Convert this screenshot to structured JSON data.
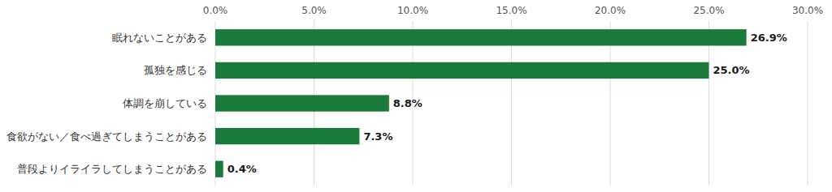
{
  "chart_data": {
    "type": "bar",
    "orientation": "horizontal",
    "categories": [
      "普段よりイライラしてしまうことがある",
      "食欲がない／食べ過ぎてしまうことがある",
      "体調を崩している",
      "孤独を感じる",
      "眠れないことがある"
    ],
    "values": [
      0.4,
      7.3,
      8.8,
      25.0,
      26.9
    ],
    "value_labels": [
      "0.4%",
      "7.3%",
      "8.8%",
      "25.0%",
      "26.9%"
    ],
    "data_labels": true,
    "color": "#1a7a3c",
    "xlim": [
      0,
      30
    ],
    "xticks": [
      {
        "value": 0,
        "label": "0.0%"
      },
      {
        "value": 5,
        "label": "5.0%"
      },
      {
        "value": 10,
        "label": "10.0%"
      },
      {
        "value": 15,
        "label": "15.0%"
      },
      {
        "value": 20,
        "label": "20.0%"
      },
      {
        "value": 25,
        "label": "25.0%"
      },
      {
        "value": 30,
        "label": "30.0%"
      }
    ],
    "grid": true
  }
}
